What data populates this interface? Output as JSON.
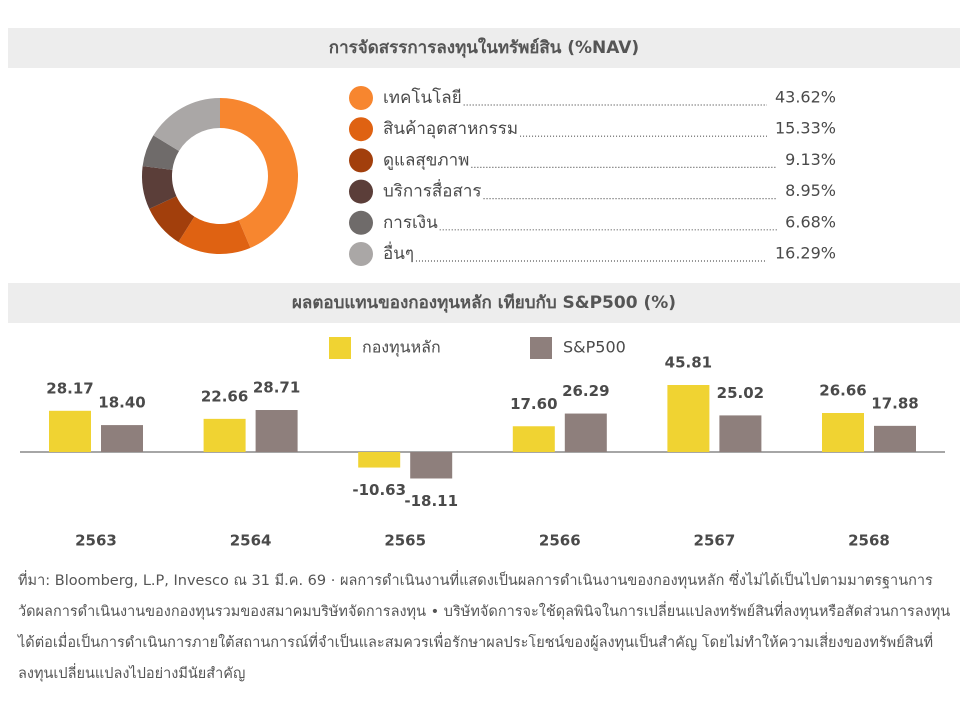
{
  "chart_data": [
    {
      "type": "donut",
      "title": "การจัดสรรการลงทุนในทรัพย์สิน (%NAV)",
      "categories": [
        "เทคโนโลยี",
        "สินค้าอุตสาหกรรม",
        "ดูแลสุขภาพ",
        "บริการสื่อสาร",
        "การเงิน",
        "อื่นๆ"
      ],
      "values": [
        43.62,
        15.33,
        9.13,
        8.95,
        6.68,
        16.29
      ],
      "value_labels": [
        "43.62%",
        "15.33%",
        "9.13%",
        "8.95%",
        "6.68%",
        "16.29%"
      ],
      "colors": [
        "#f7862f",
        "#df6212",
        "#a23f0c",
        "#5b3e39",
        "#6f6b6a",
        "#aaa7a6"
      ]
    },
    {
      "type": "bar",
      "title": "ผลตอบแทนของกองทุนหลัก เทียบกับ S&P500 (%)",
      "categories": [
        "2563",
        "2564",
        "2565",
        "2566",
        "2567",
        "2568"
      ],
      "series": [
        {
          "name": "กองทุนหลัก",
          "color": "#f0d332",
          "values": [
            28.17,
            22.66,
            -10.63,
            17.6,
            45.81,
            26.66
          ],
          "value_labels": [
            "28.17",
            "22.66",
            "-10.63",
            "17.60",
            "45.81",
            "26.66"
          ]
        },
        {
          "name": "S&P500",
          "color": "#8e7f7c",
          "values": [
            18.4,
            28.71,
            -18.11,
            26.29,
            25.02,
            17.88
          ],
          "value_labels": [
            "18.40",
            "28.71",
            "-18.11",
            "26.29",
            "25.02",
            "17.88"
          ]
        }
      ]
    }
  ],
  "footnote": "ที่มา: Bloomberg, L.P, Invesco ณ 31 มี.ค. 69 · ผลการดำเนินงานที่แสดงเป็นผลการดำเนินงานของกองทุนหลัก ซึ่งไม่ได้เป็นไปตามมาตรฐานการวัดผลการดำเนินงานของกองทุนรวมของสมาคมบริษัทจัดการลงทุน • บริษัทจัดการจะใช้ดุลพินิจในการเปลี่ยนแปลงทรัพย์สินที่ลงทุนหรือสัดส่วนการลงทุนได้ต่อเมื่อเป็นการดำเนินการภายใต้สถานการณ์ที่จำเป็นและสมควรเพื่อรักษาผลประโยชน์ของผู้ลงทุนเป็นสำคัญ โดยไม่ทำให้ความเสี่ยงของทรัพย์สินที่ลงทุนเปลี่ยนแปลงไปอย่างมีนัยสำคัญ"
}
